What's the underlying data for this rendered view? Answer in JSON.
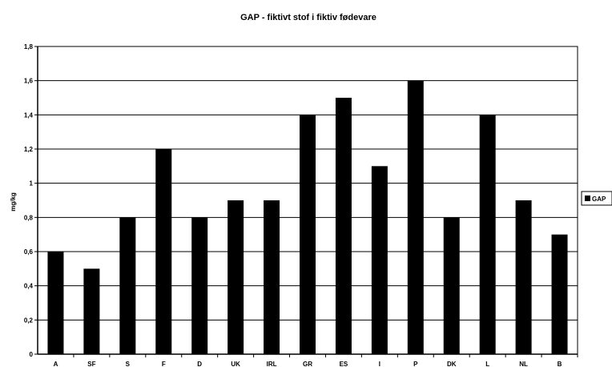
{
  "chart_data": {
    "type": "bar",
    "title": "GAP - fiktivt stof i fiktiv fødevare",
    "xlabel": "",
    "ylabel": "mg/kg",
    "ylim": [
      0,
      1.8
    ],
    "yticks": [
      "0",
      "0,2",
      "0,4",
      "0,6",
      "0,8",
      "1",
      "1,2",
      "1,4",
      "1,6",
      "1,8"
    ],
    "categories": [
      "A",
      "SF",
      "S",
      "F",
      "D",
      "UK",
      "IRL",
      "GR",
      "ES",
      "I",
      "P",
      "DK",
      "L",
      "NL",
      "B"
    ],
    "series": [
      {
        "name": "GAP",
        "values": [
          0.6,
          0.5,
          0.8,
          1.2,
          0.8,
          0.9,
          0.9,
          1.4,
          1.5,
          1.1,
          1.6,
          0.8,
          1.4,
          0.9,
          0.7
        ]
      }
    ],
    "grid": true,
    "legend": "right",
    "colors": {
      "bar": "#000000",
      "grid": "#000000",
      "background": "#ffffff"
    }
  }
}
